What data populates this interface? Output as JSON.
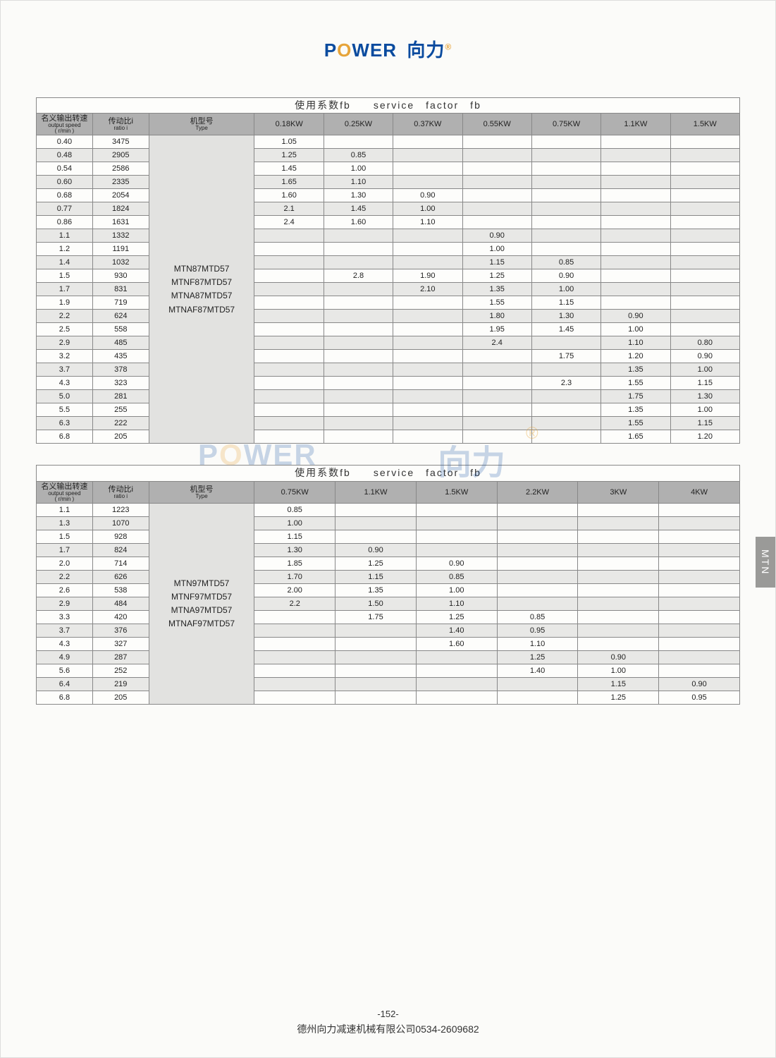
{
  "logo": {
    "p": "P",
    "o": "O",
    "wer": "WER",
    "cn": "向力",
    "r": "®"
  },
  "watermark": {
    "p": "P",
    "o": "O",
    "wer": "WER",
    "cn": "向力",
    "r": "®"
  },
  "side_tab": "MTN",
  "page_number": "-152-",
  "footer_text": "德州向力减速机械有限公司0534-2609682",
  "table1": {
    "title": "使用系数fb　　service　factor　fb",
    "headers": {
      "col1_cn": "名义输出转速",
      "col1_en": "output speed",
      "col1_unit": "( r/min )",
      "col2_cn": "传动比i",
      "col2_en": "ratio i",
      "col3_cn": "机型号",
      "col3_en": "Type",
      "kw": [
        "0.18KW",
        "0.25KW",
        "0.37KW",
        "0.55KW",
        "0.75KW",
        "1.1KW",
        "1.5KW"
      ]
    },
    "type_models": "MTN87MTD57\nMTNF87MTD57\nMTNA87MTD57\nMTNAF87MTD57",
    "rows": [
      {
        "s": "0.40",
        "r": "3475",
        "v": [
          "1.05",
          "",
          "",
          "",
          "",
          "",
          ""
        ]
      },
      {
        "s": "0.48",
        "r": "2905",
        "v": [
          "1.25",
          "0.85",
          "",
          "",
          "",
          "",
          ""
        ]
      },
      {
        "s": "0.54",
        "r": "2586",
        "v": [
          "1.45",
          "1.00",
          "",
          "",
          "",
          "",
          ""
        ]
      },
      {
        "s": "0.60",
        "r": "2335",
        "v": [
          "1.65",
          "1.10",
          "",
          "",
          "",
          "",
          ""
        ]
      },
      {
        "s": "0.68",
        "r": "2054",
        "v": [
          "1.60",
          "1.30",
          "0.90",
          "",
          "",
          "",
          ""
        ]
      },
      {
        "s": "0.77",
        "r": "1824",
        "v": [
          "2.1",
          "1.45",
          "1.00",
          "",
          "",
          "",
          ""
        ]
      },
      {
        "s": "0.86",
        "r": "1631",
        "v": [
          "2.4",
          "1.60",
          "1.10",
          "",
          "",
          "",
          ""
        ]
      },
      {
        "s": "1.1",
        "r": "1332",
        "v": [
          "",
          "",
          "",
          "0.90",
          "",
          "",
          ""
        ]
      },
      {
        "s": "1.2",
        "r": "1191",
        "v": [
          "",
          "",
          "",
          "1.00",
          "",
          "",
          ""
        ]
      },
      {
        "s": "1.4",
        "r": "1032",
        "v": [
          "",
          "",
          "",
          "1.15",
          "0.85",
          "",
          ""
        ]
      },
      {
        "s": "1.5",
        "r": "930",
        "v": [
          "",
          "2.8",
          "1.90",
          "1.25",
          "0.90",
          "",
          ""
        ]
      },
      {
        "s": "1.7",
        "r": "831",
        "v": [
          "",
          "",
          "2.10",
          "1.35",
          "1.00",
          "",
          ""
        ]
      },
      {
        "s": "1.9",
        "r": "719",
        "v": [
          "",
          "",
          "",
          "1.55",
          "1.15",
          "",
          ""
        ]
      },
      {
        "s": "2.2",
        "r": "624",
        "v": [
          "",
          "",
          "",
          "1.80",
          "1.30",
          "0.90",
          ""
        ]
      },
      {
        "s": "2.5",
        "r": "558",
        "v": [
          "",
          "",
          "",
          "1.95",
          "1.45",
          "1.00",
          ""
        ]
      },
      {
        "s": "2.9",
        "r": "485",
        "v": [
          "",
          "",
          "",
          "2.4",
          "",
          "1.10",
          "0.80"
        ]
      },
      {
        "s": "3.2",
        "r": "435",
        "v": [
          "",
          "",
          "",
          "",
          "1.75",
          "1.20",
          "0.90"
        ]
      },
      {
        "s": "3.7",
        "r": "378",
        "v": [
          "",
          "",
          "",
          "",
          "",
          "1.35",
          "1.00"
        ]
      },
      {
        "s": "4.3",
        "r": "323",
        "v": [
          "",
          "",
          "",
          "",
          "2.3",
          "1.55",
          "1.15"
        ]
      },
      {
        "s": "5.0",
        "r": "281",
        "v": [
          "",
          "",
          "",
          "",
          "",
          "1.75",
          "1.30"
        ]
      },
      {
        "s": "5.5",
        "r": "255",
        "v": [
          "",
          "",
          "",
          "",
          "",
          "1.35",
          "1.00"
        ]
      },
      {
        "s": "6.3",
        "r": "222",
        "v": [
          "",
          "",
          "",
          "",
          "",
          "1.55",
          "1.15"
        ]
      },
      {
        "s": "6.8",
        "r": "205",
        "v": [
          "",
          "",
          "",
          "",
          "",
          "1.65",
          "1.20"
        ]
      }
    ]
  },
  "table2": {
    "title": "使用系数fb　　service　factor　fb",
    "headers": {
      "col1_cn": "名义输出转速",
      "col1_en": "output speed",
      "col1_unit": "( r/min )",
      "col2_cn": "传动比i",
      "col2_en": "ratio i",
      "col3_cn": "机型号",
      "col3_en": "Type",
      "kw": [
        "0.75KW",
        "1.1KW",
        "1.5KW",
        "2.2KW",
        "3KW",
        "4KW"
      ]
    },
    "type_models": "MTN97MTD57\nMTNF97MTD57\nMTNA97MTD57\nMTNAF97MTD57",
    "rows": [
      {
        "s": "1.1",
        "r": "1223",
        "v": [
          "0.85",
          "",
          "",
          "",
          "",
          ""
        ]
      },
      {
        "s": "1.3",
        "r": "1070",
        "v": [
          "1.00",
          "",
          "",
          "",
          "",
          ""
        ]
      },
      {
        "s": "1.5",
        "r": "928",
        "v": [
          "1.15",
          "",
          "",
          "",
          "",
          ""
        ]
      },
      {
        "s": "1.7",
        "r": "824",
        "v": [
          "1.30",
          "0.90",
          "",
          "",
          "",
          ""
        ]
      },
      {
        "s": "2.0",
        "r": "714",
        "v": [
          "1.85",
          "1.25",
          "0.90",
          "",
          "",
          ""
        ]
      },
      {
        "s": "2.2",
        "r": "626",
        "v": [
          "1.70",
          "1.15",
          "0.85",
          "",
          "",
          ""
        ]
      },
      {
        "s": "2.6",
        "r": "538",
        "v": [
          "2.00",
          "1.35",
          "1.00",
          "",
          "",
          ""
        ]
      },
      {
        "s": "2.9",
        "r": "484",
        "v": [
          "2.2",
          "1.50",
          "1.10",
          "",
          "",
          ""
        ]
      },
      {
        "s": "3.3",
        "r": "420",
        "v": [
          "",
          "1.75",
          "1.25",
          "0.85",
          "",
          ""
        ]
      },
      {
        "s": "3.7",
        "r": "376",
        "v": [
          "",
          "",
          "1.40",
          "0.95",
          "",
          ""
        ]
      },
      {
        "s": "4.3",
        "r": "327",
        "v": [
          "",
          "",
          "1.60",
          "1.10",
          "",
          ""
        ]
      },
      {
        "s": "4.9",
        "r": "287",
        "v": [
          "",
          "",
          "",
          "1.25",
          "0.90",
          ""
        ]
      },
      {
        "s": "5.6",
        "r": "252",
        "v": [
          "",
          "",
          "",
          "1.40",
          "1.00",
          ""
        ]
      },
      {
        "s": "6.4",
        "r": "219",
        "v": [
          "",
          "",
          "",
          "",
          "1.15",
          "0.90"
        ]
      },
      {
        "s": "6.8",
        "r": "205",
        "v": [
          "",
          "",
          "",
          "",
          "1.25",
          "0.95"
        ]
      }
    ]
  }
}
